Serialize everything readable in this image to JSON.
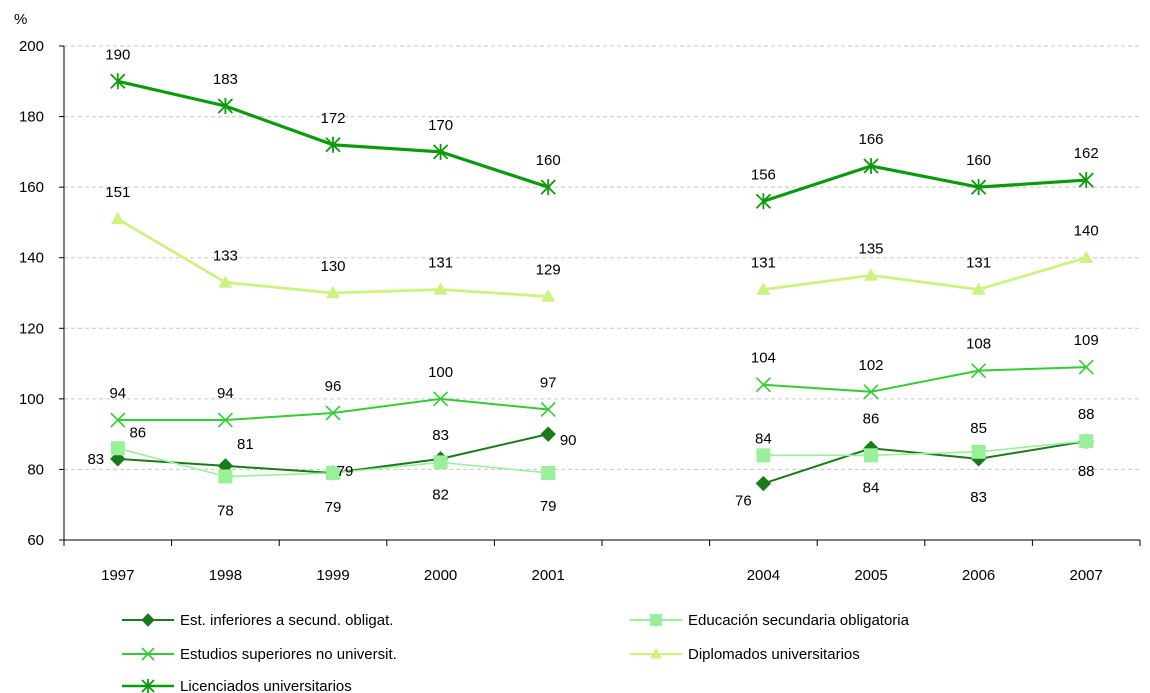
{
  "chart_data": {
    "type": "line",
    "ylabel": "%",
    "ylim": [
      60,
      200
    ],
    "yticks": [
      60,
      80,
      100,
      120,
      140,
      160,
      180,
      200
    ],
    "grid": true,
    "legend_position": "bottom",
    "categories": [
      "1997",
      "1998",
      "1999",
      "2000",
      "2001",
      "",
      "2004",
      "2005",
      "2006",
      "2007"
    ],
    "series": [
      {
        "name": "Est. inferiores a secund. obligat.",
        "values": [
          83,
          81,
          79,
          83,
          90,
          null,
          76,
          86,
          83,
          88
        ],
        "color": "#1a7a1a",
        "marker": "diamond",
        "label_dx": [
          -22,
          20,
          12,
          0,
          20,
          0,
          -20,
          0,
          0,
          0
        ],
        "label_dy": [
          0,
          -22,
          -2,
          -24,
          6,
          0,
          17,
          -30,
          38,
          30
        ]
      },
      {
        "name": "Educación secundaria obligatoria",
        "values": [
          86,
          78,
          79,
          82,
          79,
          null,
          84,
          84,
          85,
          88
        ],
        "color": "#99f099",
        "marker": "square",
        "label_dx": [
          20,
          0,
          0,
          0,
          0,
          0,
          0,
          0,
          0,
          0
        ],
        "label_dy": [
          -16,
          34,
          34,
          32,
          33,
          0,
          -17,
          32,
          -24,
          -27
        ]
      },
      {
        "name": "Estudios superiores no universit.",
        "values": [
          94,
          94,
          96,
          100,
          97,
          null,
          104,
          102,
          108,
          109
        ],
        "color": "#33cc33",
        "marker": "x",
        "label_dx": [
          0,
          0,
          0,
          0,
          0,
          0,
          0,
          0,
          0,
          0
        ],
        "label_dy": [
          -27,
          -27,
          -27,
          -27,
          -27,
          0,
          -27,
          -27,
          -27,
          -27
        ]
      },
      {
        "name": "Diplomados universitarios",
        "values": [
          151,
          133,
          130,
          131,
          129,
          null,
          131,
          135,
          131,
          140
        ],
        "color": "#ccf280",
        "marker": "triangle",
        "label_dx": [
          0,
          0,
          0,
          0,
          0,
          0,
          0,
          0,
          0,
          0
        ],
        "label_dy": [
          -27,
          -27,
          -27,
          -27,
          -27,
          0,
          -27,
          -27,
          -27,
          -27
        ]
      },
      {
        "name": "Licenciados universitarios",
        "values": [
          190,
          183,
          172,
          170,
          160,
          null,
          156,
          166,
          160,
          162
        ],
        "color": "#0b9a0b",
        "marker": "asterisk",
        "label_dx": [
          0,
          0,
          0,
          0,
          0,
          0,
          0,
          0,
          0,
          0
        ],
        "label_dy": [
          -27,
          -27,
          -27,
          -27,
          -27,
          0,
          -27,
          -27,
          -27,
          -27
        ]
      }
    ]
  }
}
